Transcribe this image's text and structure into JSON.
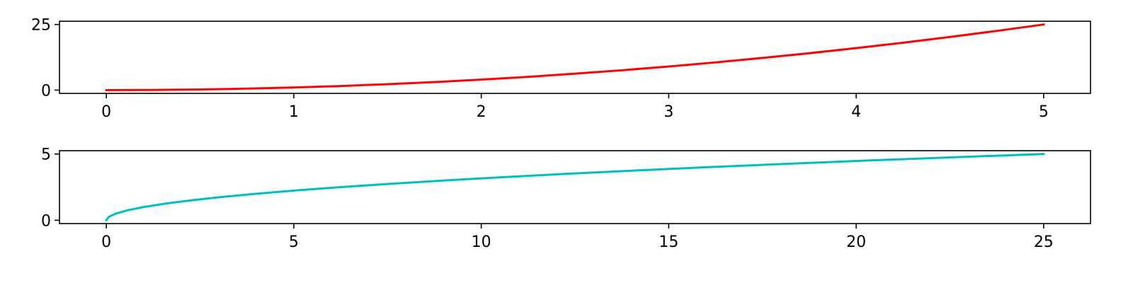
{
  "chart_data": [
    {
      "type": "line",
      "xlim": [
        -0.25,
        5.25
      ],
      "ylim": [
        -1.25,
        26.25
      ],
      "x_ticks": [
        0,
        1,
        2,
        3,
        4,
        5
      ],
      "y_ticks": [
        0,
        25
      ],
      "grid": false,
      "series": [
        {
          "color": "#ff0000",
          "x": [
            0,
            0.25,
            0.5,
            0.75,
            1,
            1.25,
            1.5,
            1.75,
            2,
            2.25,
            2.5,
            2.75,
            3,
            3.25,
            3.5,
            3.75,
            4,
            4.25,
            4.5,
            4.75,
            5
          ],
          "y": [
            0,
            0.0625,
            0.25,
            0.5625,
            1,
            1.5625,
            2.25,
            3.0625,
            4,
            5.0625,
            6.25,
            7.5625,
            9,
            10.5625,
            12.25,
            14.0625,
            16,
            18.0625,
            20.25,
            22.5625,
            25
          ]
        }
      ]
    },
    {
      "type": "line",
      "xlim": [
        -1.25,
        26.25
      ],
      "ylim": [
        -0.25,
        5.25
      ],
      "x_ticks": [
        0,
        5,
        10,
        15,
        20,
        25
      ],
      "y_ticks": [
        0,
        5
      ],
      "grid": false,
      "series": [
        {
          "color": "#00bfbf",
          "x": [
            0,
            0.0625,
            0.25,
            0.5625,
            1,
            1.5625,
            2.25,
            3.0625,
            4,
            5.0625,
            6.25,
            7.5625,
            9,
            10.5625,
            12.25,
            14.0625,
            16,
            18.0625,
            20.25,
            22.5625,
            25
          ],
          "y": [
            0,
            0.25,
            0.5,
            0.75,
            1,
            1.25,
            1.5,
            1.75,
            2,
            2.25,
            2.5,
            2.75,
            3,
            3.25,
            3.5,
            3.75,
            4,
            4.25,
            4.5,
            4.75,
            5
          ]
        }
      ]
    }
  ]
}
